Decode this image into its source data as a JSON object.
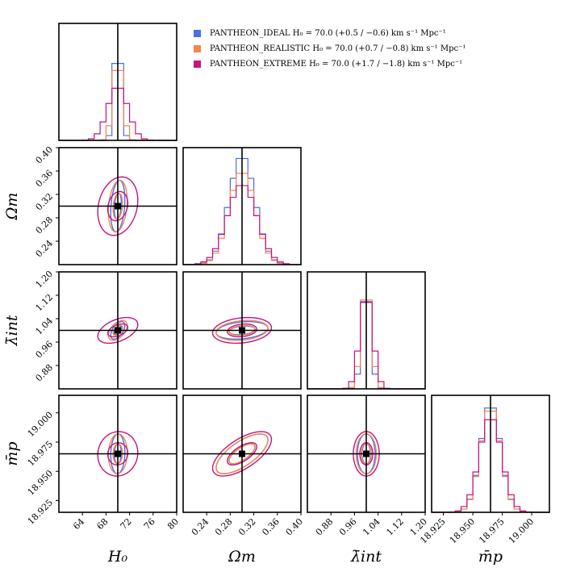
{
  "chart_data": {
    "type": "corner",
    "parameters": [
      {
        "label": "H₀",
        "range": [
          60,
          80
        ],
        "ticks": [
          "64",
          "68",
          "72",
          "76",
          "80"
        ],
        "truth": 70
      },
      {
        "label": "Ωm",
        "range": [
          0.2,
          0.4
        ],
        "ticks": [
          "0.24",
          "0.28",
          "0.32",
          "0.36",
          "0.40"
        ],
        "truth": 0.3
      },
      {
        "label": "λ̄int",
        "range": [
          0.8,
          1.2
        ],
        "ticks": [
          "0.88",
          "0.96",
          "1.04",
          "1.12",
          "1.20"
        ],
        "truth": 1.0
      },
      {
        "label": "m̄p",
        "range": [
          18.915,
          19.015
        ],
        "ticks": [
          "18.925",
          "18.950",
          "18.975",
          "19.000"
        ],
        "truth": 18.965
      }
    ],
    "series": [
      {
        "name": "PANTHEON_IDEAL",
        "estimate": "H₀ = 70.0 (+0.5 / −0.6) km s⁻¹ Mpc⁻¹",
        "color": "#4a6fe3",
        "sigma": [
          0.6,
          0.022,
          0.015,
          0.0085
        ],
        "corr": [
          [
            1,
            0.25,
            0.55,
            0.05
          ],
          [
            0.25,
            1,
            0.25,
            0.7
          ],
          [
            0.55,
            0.25,
            1,
            0.0
          ],
          [
            0.05,
            0.7,
            0.0,
            1
          ]
        ]
      },
      {
        "name": "PANTHEON_REALISTIC",
        "estimate": "H₀ = 70.0 (+0.7 / −0.8) km s⁻¹ Mpc⁻¹",
        "color": "#f4864f",
        "sigma": [
          0.8,
          0.022,
          0.017,
          0.0085
        ],
        "corr": [
          [
            1,
            0.22,
            0.5,
            0.05
          ],
          [
            0.22,
            1,
            0.22,
            0.7
          ],
          [
            0.5,
            0.22,
            1,
            0.0
          ],
          [
            0.05,
            0.7,
            0.0,
            1
          ]
        ]
      },
      {
        "name": "PANTHEON_EXTREME",
        "estimate": "H₀ = 70.0 (+1.7 / −1.8) km s⁻¹ Mpc⁻¹",
        "color": "#c3157e",
        "sigma": [
          1.7,
          0.025,
          0.022,
          0.0095
        ],
        "corr": [
          [
            1,
            0.2,
            0.45,
            0.05
          ],
          [
            0.2,
            1,
            0.2,
            0.65
          ],
          [
            0.45,
            0.2,
            1,
            0.0
          ],
          [
            0.05,
            0.65,
            0.0,
            1
          ]
        ]
      }
    ],
    "legend_position": "top-right",
    "contour_levels_sigma": [
      1,
      2
    ],
    "grid": false
  }
}
